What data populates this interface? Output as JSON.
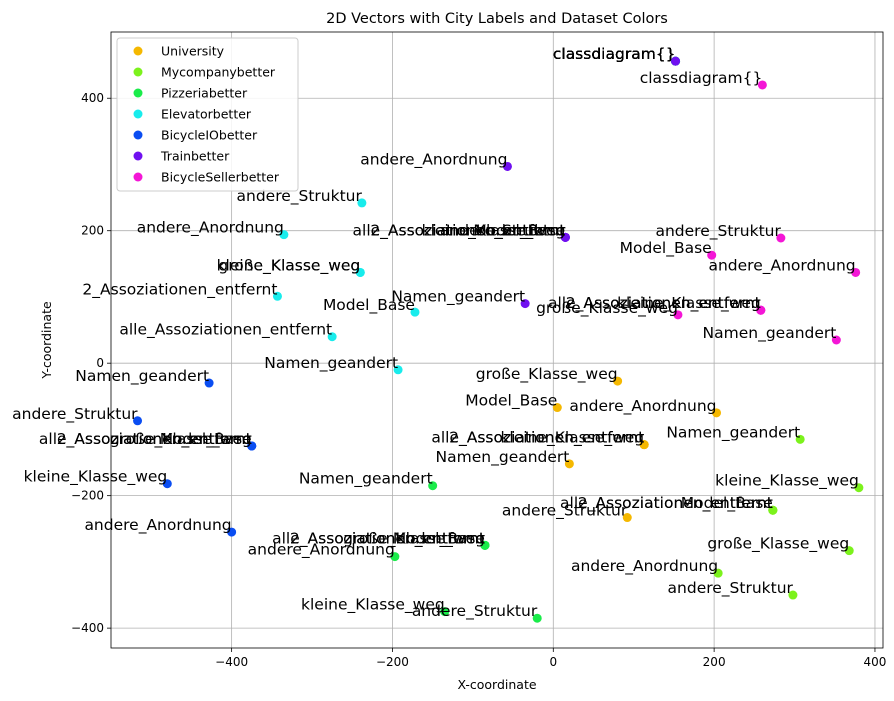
{
  "chart_data": {
    "type": "scatter",
    "title": "2D Vectors with City Labels and Dataset Colors",
    "xlabel": "X-coordinate",
    "ylabel": "Y-coordinate",
    "xlim": [
      -550,
      410
    ],
    "ylim": [
      -430,
      500
    ],
    "xticks": [
      -400,
      -200,
      0,
      200,
      400
    ],
    "yticks": [
      -400,
      -200,
      0,
      200,
      400
    ],
    "grid": true,
    "legend_position": "upper-left",
    "series": [
      {
        "name": "University",
        "color": "#f5b800",
        "points": [
          {
            "x": 152,
            "y": 456,
            "label": "classdiagram{}"
          },
          {
            "x": 80,
            "y": -27,
            "label": "große_Klasse_weg"
          },
          {
            "x": 5,
            "y": -67,
            "label": "Model_Base"
          },
          {
            "x": 203,
            "y": -75,
            "label": "andere_Anordnung"
          },
          {
            "x": 113,
            "y": -123,
            "label": "alle_Assoziationen_entfernt"
          },
          {
            "x": 113,
            "y": -123,
            "label": "2_Assoziationen_entfernt"
          },
          {
            "x": 113,
            "y": -123,
            "label": "kleine_Klasse_weg"
          },
          {
            "x": 20,
            "y": -152,
            "label": "Namen_geandert"
          },
          {
            "x": 92,
            "y": -233,
            "label": "andere_Struktur"
          }
        ]
      },
      {
        "name": "Mycompanybetter",
        "color": "#7cf21c",
        "points": [
          {
            "x": 152,
            "y": 456,
            "label": "classdiagram{}"
          },
          {
            "x": 307,
            "y": -115,
            "label": "Namen_geandert"
          },
          {
            "x": 380,
            "y": -188,
            "label": "kleine_Klasse_weg"
          },
          {
            "x": 273,
            "y": -222,
            "label": "alle_Assoziationen_entfernt"
          },
          {
            "x": 273,
            "y": -222,
            "label": "2_Assoziationen_entfernt"
          },
          {
            "x": 273,
            "y": -222,
            "label": "Model_Base"
          },
          {
            "x": 368,
            "y": -283,
            "label": "große_Klasse_weg"
          },
          {
            "x": 205,
            "y": -317,
            "label": "andere_Anordnung"
          },
          {
            "x": 298,
            "y": -350,
            "label": "andere_Struktur"
          }
        ]
      },
      {
        "name": "Pizzeriabetter",
        "color": "#1aec4a",
        "points": [
          {
            "x": 152,
            "y": 456,
            "label": "classdiagram{}"
          },
          {
            "x": -150,
            "y": -185,
            "label": "Namen_geandert"
          },
          {
            "x": -85,
            "y": -275,
            "label": "alle_Assoziationen_entfernt"
          },
          {
            "x": -85,
            "y": -275,
            "label": "2_Assoziationen_entfernt"
          },
          {
            "x": -85,
            "y": -275,
            "label": "Model_Base"
          },
          {
            "x": -85,
            "y": -275,
            "label": "große_Klasse_weg"
          },
          {
            "x": -197,
            "y": -292,
            "label": "andere_Anordnung"
          },
          {
            "x": -135,
            "y": -375,
            "label": "kleine_Klasse_weg"
          },
          {
            "x": -20,
            "y": -385,
            "label": "andere_Struktur"
          }
        ]
      },
      {
        "name": "Elevatorbetter",
        "color": "#18ecec",
        "points": [
          {
            "x": 152,
            "y": 456,
            "label": "classdiagram{}"
          },
          {
            "x": -238,
            "y": 242,
            "label": "andere_Struktur"
          },
          {
            "x": -335,
            "y": 194,
            "label": "andere_Anordnung"
          },
          {
            "x": -240,
            "y": 137,
            "label": "kleine_Klasse_weg"
          },
          {
            "x": -240,
            "y": 137,
            "label": "große_Klasse_weg"
          },
          {
            "x": -343,
            "y": 101,
            "label": "2_Assoziationen_entfernt"
          },
          {
            "x": -172,
            "y": 77,
            "label": "Model_Base"
          },
          {
            "x": -275,
            "y": 40,
            "label": "alle_Assoziationen_entfernt"
          },
          {
            "x": -193,
            "y": -10,
            "label": "Namen_geandert"
          }
        ]
      },
      {
        "name": "BicycleIObetter",
        "color": "#0a4df2",
        "points": [
          {
            "x": 152,
            "y": 456,
            "label": "classdiagram{}"
          },
          {
            "x": -428,
            "y": -30,
            "label": "Namen_geandert"
          },
          {
            "x": -517,
            "y": -87,
            "label": "andere_Struktur"
          },
          {
            "x": -375,
            "y": -125,
            "label": "alle_Assoziationen_entfernt"
          },
          {
            "x": -375,
            "y": -125,
            "label": "2_Assoziationen_entfernt"
          },
          {
            "x": -375,
            "y": -125,
            "label": "Model_Base"
          },
          {
            "x": -375,
            "y": -125,
            "label": "große_Klasse_weg"
          },
          {
            "x": -480,
            "y": -182,
            "label": "kleine_Klasse_weg"
          },
          {
            "x": -400,
            "y": -255,
            "label": "andere_Anordnung"
          }
        ]
      },
      {
        "name": "Trainbetter",
        "color": "#7010f0",
        "points": [
          {
            "x": 152,
            "y": 456,
            "label": "classdiagram{}"
          },
          {
            "x": -57,
            "y": 297,
            "label": "andere_Anordnung"
          },
          {
            "x": 15,
            "y": 190,
            "label": "alle_Assoziationen_entfernt"
          },
          {
            "x": 15,
            "y": 190,
            "label": "2_Assoziationen_entfernt"
          },
          {
            "x": 15,
            "y": 190,
            "label": "Model_Base"
          },
          {
            "x": 15,
            "y": 190,
            "label": "kleine_Klasse_weg"
          },
          {
            "x": 15,
            "y": 190,
            "label": "andere_Struktur"
          },
          {
            "x": -35,
            "y": 90,
            "label": "Namen_geandert"
          }
        ]
      },
      {
        "name": "BicycleSellerbetter",
        "color": "#f416d6",
        "points": [
          {
            "x": 260,
            "y": 420,
            "label": "classdiagram{}"
          },
          {
            "x": 283,
            "y": 189,
            "label": "andere_Struktur"
          },
          {
            "x": 197,
            "y": 163,
            "label": "Model_Base"
          },
          {
            "x": 376,
            "y": 137,
            "label": "andere_Anordnung"
          },
          {
            "x": 258,
            "y": 80,
            "label": "alle_Assoziationen_entfernt"
          },
          {
            "x": 258,
            "y": 80,
            "label": "2_Assoziationen_entfernt"
          },
          {
            "x": 258,
            "y": 80,
            "label": "kleine_Klasse_weg"
          },
          {
            "x": 155,
            "y": 73,
            "label": "große_Klasse_weg"
          },
          {
            "x": 352,
            "y": 35,
            "label": "Namen_geandert"
          }
        ]
      }
    ]
  }
}
